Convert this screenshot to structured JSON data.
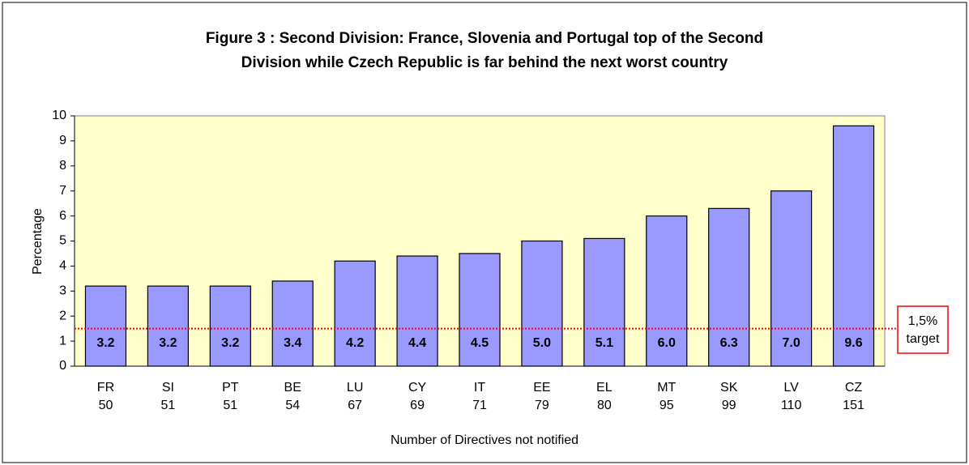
{
  "chart_data": {
    "type": "bar",
    "title": [
      "Figure 3 : Second Division: France, Slovenia and Portugal top of the Second",
      "Division while Czech Republic is far behind the next worst country"
    ],
    "categories": [
      "FR",
      "SI",
      "PT",
      "BE",
      "LU",
      "CY",
      "IT",
      "EE",
      "EL",
      "MT",
      "SK",
      "LV",
      "CZ"
    ],
    "directives_not_notified": [
      50,
      51,
      51,
      54,
      67,
      69,
      71,
      79,
      80,
      95,
      99,
      110,
      151
    ],
    "values": [
      3.2,
      3.2,
      3.2,
      3.4,
      4.2,
      4.4,
      4.5,
      5.0,
      5.1,
      6.0,
      6.3,
      7.0,
      9.6
    ],
    "value_labels": [
      "3.2",
      "3.2",
      "3.2",
      "3.4",
      "4.2",
      "4.4",
      "4.5",
      "5.0",
      "5.1",
      "6.0",
      "6.3",
      "7.0",
      "9.6"
    ],
    "color": "#9999ff",
    "ylabel": "Percentage",
    "xlabel": "Number of Directives not notified",
    "ylim": [
      0,
      10
    ],
    "yticks": [
      0,
      1,
      2,
      3,
      4,
      5,
      6,
      7,
      8,
      9,
      10
    ],
    "grid": false,
    "target_line": 1.5,
    "target_color": "#ff0000",
    "annotation": [
      "1,5%",
      "target"
    ]
  }
}
